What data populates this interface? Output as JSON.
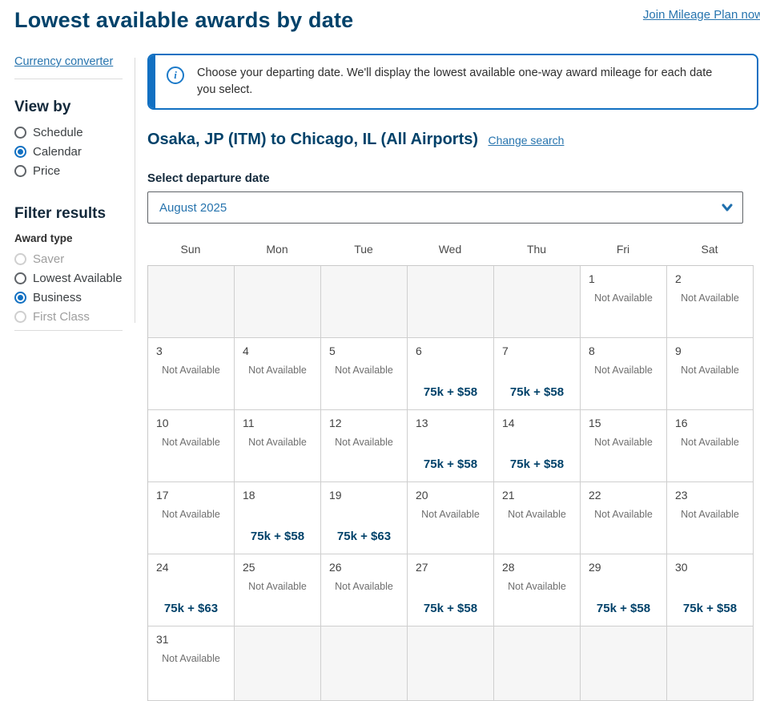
{
  "page": {
    "title": "Lowest available awards by date",
    "join_link": "Join Mileage Plan now"
  },
  "sidebar": {
    "currency_link": "Currency converter",
    "view_by": {
      "heading": "View by",
      "options": [
        {
          "label": "Schedule",
          "selected": false,
          "disabled": false
        },
        {
          "label": "Calendar",
          "selected": true,
          "disabled": false
        },
        {
          "label": "Price",
          "selected": false,
          "disabled": false
        }
      ]
    },
    "filter": {
      "heading": "Filter results",
      "award_type_label": "Award type",
      "options": [
        {
          "label": "Saver",
          "selected": false,
          "disabled": true
        },
        {
          "label": "Lowest Available",
          "selected": false,
          "disabled": false
        },
        {
          "label": "Business",
          "selected": true,
          "disabled": false
        },
        {
          "label": "First Class",
          "selected": false,
          "disabled": true
        }
      ]
    }
  },
  "main": {
    "info_banner": "Choose your departing date. We'll display the lowest available one-way award mileage for each date you select.",
    "route_heading": "Osaka, JP (ITM) to Chicago, IL (All Airports)",
    "change_search": "Change search",
    "select_label": "Select departure date",
    "month_select_value": "August 2025",
    "calendar": {
      "day_headers": [
        "Sun",
        "Mon",
        "Tue",
        "Wed",
        "Thu",
        "Fri",
        "Sat"
      ],
      "not_available_text": "Not Available",
      "weeks": [
        [
          {
            "type": "empty"
          },
          {
            "type": "empty"
          },
          {
            "type": "empty"
          },
          {
            "type": "empty"
          },
          {
            "type": "empty"
          },
          {
            "day": "1",
            "type": "na"
          },
          {
            "day": "2",
            "type": "na"
          }
        ],
        [
          {
            "day": "3",
            "type": "na"
          },
          {
            "day": "4",
            "type": "na"
          },
          {
            "day": "5",
            "type": "na"
          },
          {
            "day": "6",
            "type": "price",
            "price": "75k + $58"
          },
          {
            "day": "7",
            "type": "price",
            "price": "75k + $58"
          },
          {
            "day": "8",
            "type": "na"
          },
          {
            "day": "9",
            "type": "na"
          }
        ],
        [
          {
            "day": "10",
            "type": "na"
          },
          {
            "day": "11",
            "type": "na"
          },
          {
            "day": "12",
            "type": "na"
          },
          {
            "day": "13",
            "type": "price",
            "price": "75k + $58"
          },
          {
            "day": "14",
            "type": "price",
            "price": "75k + $58"
          },
          {
            "day": "15",
            "type": "na"
          },
          {
            "day": "16",
            "type": "na"
          }
        ],
        [
          {
            "day": "17",
            "type": "na"
          },
          {
            "day": "18",
            "type": "price",
            "price": "75k + $58"
          },
          {
            "day": "19",
            "type": "price",
            "price": "75k + $63"
          },
          {
            "day": "20",
            "type": "na"
          },
          {
            "day": "21",
            "type": "na"
          },
          {
            "day": "22",
            "type": "na"
          },
          {
            "day": "23",
            "type": "na"
          }
        ],
        [
          {
            "day": "24",
            "type": "price",
            "price": "75k + $63"
          },
          {
            "day": "25",
            "type": "na"
          },
          {
            "day": "26",
            "type": "na"
          },
          {
            "day": "27",
            "type": "price",
            "price": "75k + $58"
          },
          {
            "day": "28",
            "type": "na"
          },
          {
            "day": "29",
            "type": "price",
            "price": "75k + $58"
          },
          {
            "day": "30",
            "type": "price",
            "price": "75k + $58"
          }
        ],
        [
          {
            "day": "31",
            "type": "na"
          },
          {
            "type": "empty"
          },
          {
            "type": "empty"
          },
          {
            "type": "empty"
          },
          {
            "type": "empty"
          },
          {
            "type": "empty"
          },
          {
            "type": "empty"
          }
        ]
      ]
    }
  },
  "colors": {
    "navy": "#01426a",
    "link_blue": "#2774ae",
    "accent_blue": "#1170c2",
    "not_available_gray": "#6e6e6e",
    "empty_cell_bg": "#f6f6f6",
    "grid_border": "#cfcfcf"
  }
}
